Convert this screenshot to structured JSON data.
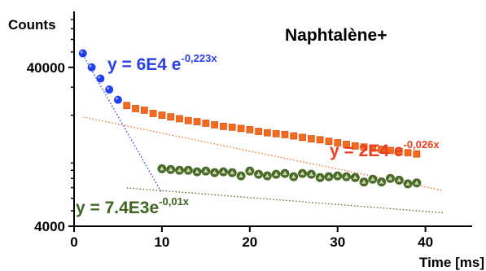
{
  "chart_data": {
    "type": "scatter",
    "title": "Naphtalène+",
    "xlabel": "Time [ms]",
    "ylabel": "Counts",
    "xlim": [
      0,
      43
    ],
    "ylim": [
      4000,
      90000
    ],
    "yscale": "log",
    "xticks": [
      0,
      10,
      20,
      30,
      40
    ],
    "yticks": [
      4000,
      40000
    ],
    "ytick_labels": [
      "4000",
      "40000"
    ],
    "grid": false,
    "series": [
      {
        "color": "#1f3ff0",
        "marker": "circle",
        "points": [
          [
            1,
            49000
          ],
          [
            2,
            40000
          ],
          [
            3,
            34000
          ],
          [
            4,
            29000
          ],
          [
            5,
            25000
          ]
        ],
        "trendline": {
          "label": "y = 6E4 e",
          "exponent": "-0,223x",
          "x_range": [
            1,
            10
          ]
        }
      },
      {
        "color": "#f26b1f",
        "marker": "square",
        "points": [
          [
            6,
            23000
          ],
          [
            7,
            22000
          ],
          [
            8,
            21500
          ],
          [
            9,
            20500
          ],
          [
            10,
            20000
          ],
          [
            11,
            19500
          ],
          [
            12,
            19000
          ],
          [
            13,
            18500
          ],
          [
            14,
            18200
          ],
          [
            15,
            17800
          ],
          [
            16,
            17400
          ],
          [
            17,
            17000
          ],
          [
            18,
            16800
          ],
          [
            19,
            16500
          ],
          [
            20,
            16200
          ],
          [
            21,
            15800
          ],
          [
            22,
            15500
          ],
          [
            23,
            15300
          ],
          [
            24,
            15100
          ],
          [
            25,
            14800
          ],
          [
            26,
            14500
          ],
          [
            27,
            14200
          ],
          [
            28,
            14000
          ],
          [
            29,
            13700
          ],
          [
            30,
            13400
          ],
          [
            31,
            13100
          ],
          [
            32,
            12800
          ],
          [
            33,
            12600
          ],
          [
            34,
            12400
          ],
          [
            35,
            12200
          ],
          [
            36,
            12000
          ],
          [
            37,
            11800
          ],
          [
            38,
            11600
          ],
          [
            39,
            11400
          ]
        ],
        "trendline": {
          "label": "y = 2E4 e",
          "exponent": "-0,026x",
          "x_range": [
            1,
            42
          ]
        }
      },
      {
        "color": "#4a6b28",
        "marker": "circle",
        "points": [
          [
            10,
            9200
          ],
          [
            11,
            9100
          ],
          [
            12,
            9000
          ],
          [
            13,
            9000
          ],
          [
            14,
            8800
          ],
          [
            15,
            8900
          ],
          [
            16,
            8700
          ],
          [
            17,
            8800
          ],
          [
            18,
            8700
          ],
          [
            19,
            8300
          ],
          [
            20,
            8900
          ],
          [
            21,
            8500
          ],
          [
            22,
            8300
          ],
          [
            23,
            8500
          ],
          [
            24,
            8600
          ],
          [
            25,
            8200
          ],
          [
            26,
            8600
          ],
          [
            27,
            8500
          ],
          [
            28,
            8100
          ],
          [
            29,
            8200
          ],
          [
            30,
            8300
          ],
          [
            31,
            8200
          ],
          [
            32,
            8100
          ],
          [
            33,
            7600
          ],
          [
            34,
            7900
          ],
          [
            35,
            7600
          ],
          [
            36,
            8000
          ],
          [
            37,
            7800
          ],
          [
            38,
            7400
          ],
          [
            39,
            7500
          ]
        ],
        "trendline": {
          "label": "y = 7.4E3e",
          "exponent": "-0,01x",
          "x_range": [
            6,
            42
          ]
        }
      }
    ]
  }
}
